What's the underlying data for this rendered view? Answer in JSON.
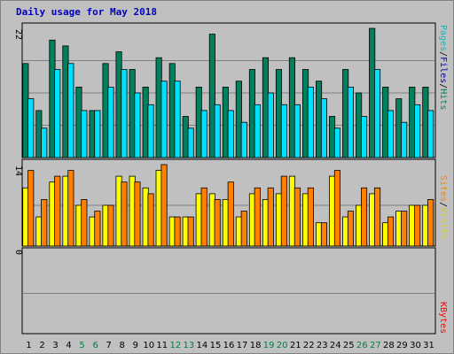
{
  "title": "Daily usage for May 2018",
  "colors": {
    "hits": "#00805c",
    "files": "#00e0ff",
    "pages": "#00c0c0",
    "visits": "#ffff00",
    "sites": "#ff8000",
    "kbytes": "#ff0000",
    "weekday_label": "#000000",
    "weekend_label": "#008040"
  },
  "panels": {
    "top": {
      "max_label": "22",
      "legend": [
        "Pages",
        "/",
        "Files",
        "/",
        "Hits"
      ]
    },
    "mid": {
      "max_label": "14",
      "legend": [
        "Sites",
        "/",
        "Visits"
      ]
    },
    "bottom": {
      "max_label": "0",
      "legend": [
        "KBytes"
      ]
    }
  },
  "chart_data": [
    {
      "type": "bar",
      "title": "Daily usage for May 2018",
      "categories": [
        "1",
        "2",
        "3",
        "4",
        "5",
        "6",
        "7",
        "8",
        "9",
        "10",
        "11",
        "12",
        "13",
        "14",
        "15",
        "16",
        "17",
        "18",
        "19",
        "20",
        "21",
        "22",
        "23",
        "24",
        "25",
        "26",
        "27",
        "28",
        "29",
        "30",
        "31"
      ],
      "weekend_days": [
        "5",
        "6",
        "12",
        "13",
        "19",
        "20",
        "26",
        "27"
      ],
      "ylim": [
        0,
        22
      ],
      "series": [
        {
          "name": "Hits",
          "values": [
            16,
            8,
            20,
            19,
            12,
            8,
            16,
            18,
            15,
            12,
            17,
            16,
            7,
            12,
            21,
            12,
            13,
            15,
            17,
            15,
            17,
            15,
            13,
            7,
            15,
            11,
            22,
            12,
            10,
            12,
            12
          ]
        },
        {
          "name": "Files",
          "values": [
            10,
            5,
            15,
            16,
            8,
            8,
            12,
            15,
            11,
            9,
            13,
            13,
            5,
            8,
            9,
            8,
            6,
            9,
            11,
            9,
            9,
            12,
            10,
            5,
            12,
            7,
            15,
            8,
            6,
            9,
            8
          ]
        }
      ]
    },
    {
      "type": "bar",
      "ylim": [
        0,
        14
      ],
      "series": [
        {
          "name": "Visits",
          "values": [
            10,
            5,
            11,
            12,
            7,
            5,
            7,
            12,
            12,
            10,
            13,
            5,
            5,
            9,
            9,
            8,
            5,
            9,
            8,
            9,
            12,
            9,
            4,
            12,
            5,
            7,
            9,
            4,
            6,
            7,
            7
          ]
        },
        {
          "name": "Sites",
          "values": [
            13,
            8,
            12,
            13,
            8,
            6,
            7,
            11,
            11,
            9,
            14,
            5,
            5,
            10,
            8,
            11,
            6,
            10,
            10,
            12,
            10,
            10,
            4,
            13,
            6,
            10,
            10,
            5,
            6,
            7,
            8
          ]
        }
      ]
    },
    {
      "type": "bar",
      "ylim": [
        0,
        1
      ],
      "series": [
        {
          "name": "KBytes",
          "values": [
            0,
            0,
            0,
            0,
            0,
            0,
            0,
            0,
            0,
            0,
            0,
            0,
            0,
            0,
            0,
            0,
            0,
            0,
            0,
            0,
            0,
            0,
            0,
            0,
            0,
            0,
            0,
            0,
            0,
            0,
            0
          ]
        }
      ]
    }
  ]
}
